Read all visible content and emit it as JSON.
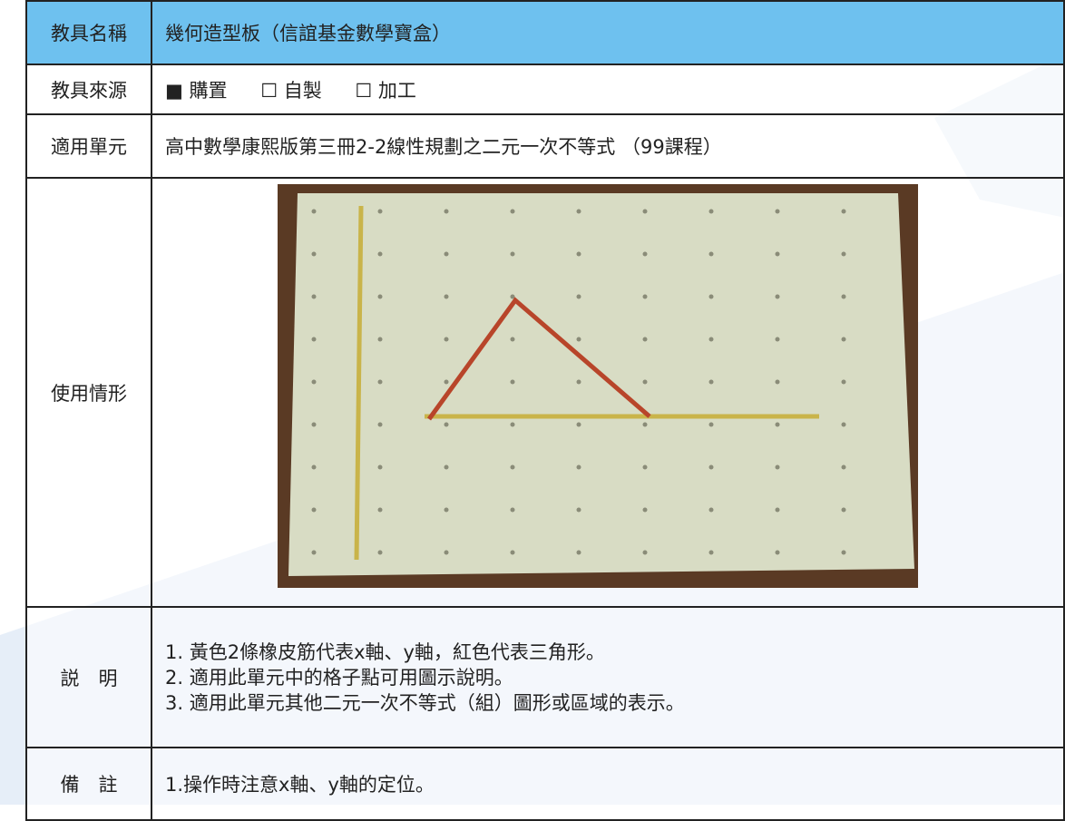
{
  "table": {
    "name": {
      "label": "教具名稱",
      "value": "幾何造型板（信誼基金數學寶盒）"
    },
    "source": {
      "label": "教具來源",
      "options": [
        "■ 購置",
        "☐ 自製",
        "☐ 加工"
      ]
    },
    "unit": {
      "label": "適用單元",
      "value": "高中數學康熙版第三冊2-2線性規劃之二元一次不等式 （99課程）"
    },
    "usage": {
      "label": "使用情形"
    },
    "description": {
      "label": "説　明",
      "lines": [
        "1. 黃色2條橡皮筋代表x軸、y軸，紅色代表三角形。",
        "2. 適用此單元中的格子點可用圖示說明。",
        "3. 適用此單元其他二元一次不等式（組）圖形或區域的表示。"
      ]
    },
    "notes": {
      "label": "備　註",
      "value": "1.操作時注意x軸、y軸的定位。"
    }
  }
}
